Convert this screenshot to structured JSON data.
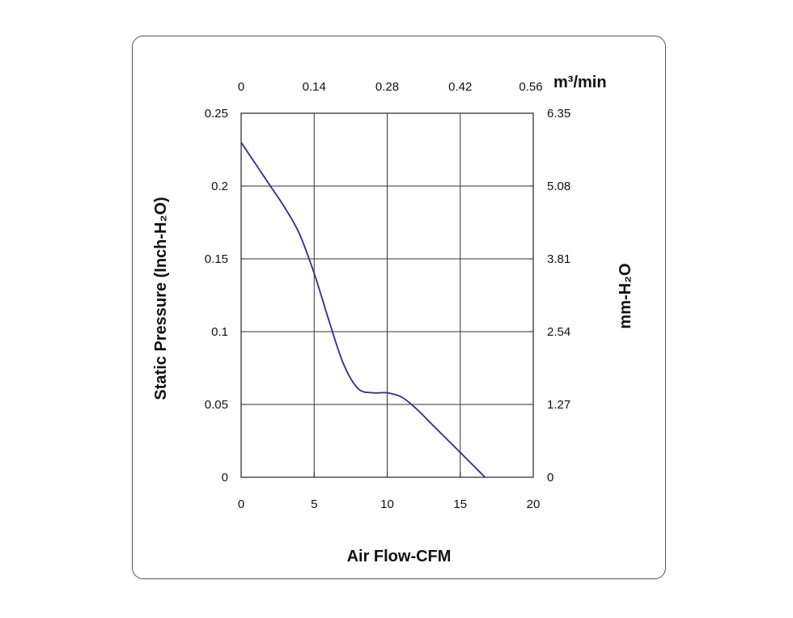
{
  "chart_data": {
    "type": "line",
    "xlabel": "Air Flow-CFM",
    "ylabel": "Static Pressure (Inch-H₂O)",
    "x2label": "m³/min",
    "y2label": "mm-H₂O",
    "xlim": [
      0,
      20
    ],
    "ylim": [
      0,
      0.25
    ],
    "x_ticks": [
      "0",
      "5",
      "10",
      "15",
      "20"
    ],
    "y_ticks": [
      "0",
      "0.05",
      "0.1",
      "0.15",
      "0.2",
      "0.25"
    ],
    "x2_ticks": [
      "0",
      "0.14",
      "0.28",
      "0.42",
      "0.56"
    ],
    "y2_ticks": [
      "0",
      "1.27",
      "2.54",
      "3.81",
      "5.08",
      "6.35"
    ],
    "grid": true,
    "line_color": "#2b2f8a",
    "series": [
      {
        "x": [
          0,
          1,
          2,
          3,
          4,
          5,
          6,
          7,
          8,
          9,
          10,
          11,
          12,
          13,
          14,
          15,
          16,
          17
        ],
        "y": [
          0.23,
          0.215,
          0.2,
          0.185,
          0.167,
          0.14,
          0.108,
          0.078,
          0.061,
          0.058,
          0.058,
          0.055,
          0.047,
          0.037,
          0.027,
          0.017,
          0.007,
          -0.003
        ]
      }
    ]
  }
}
